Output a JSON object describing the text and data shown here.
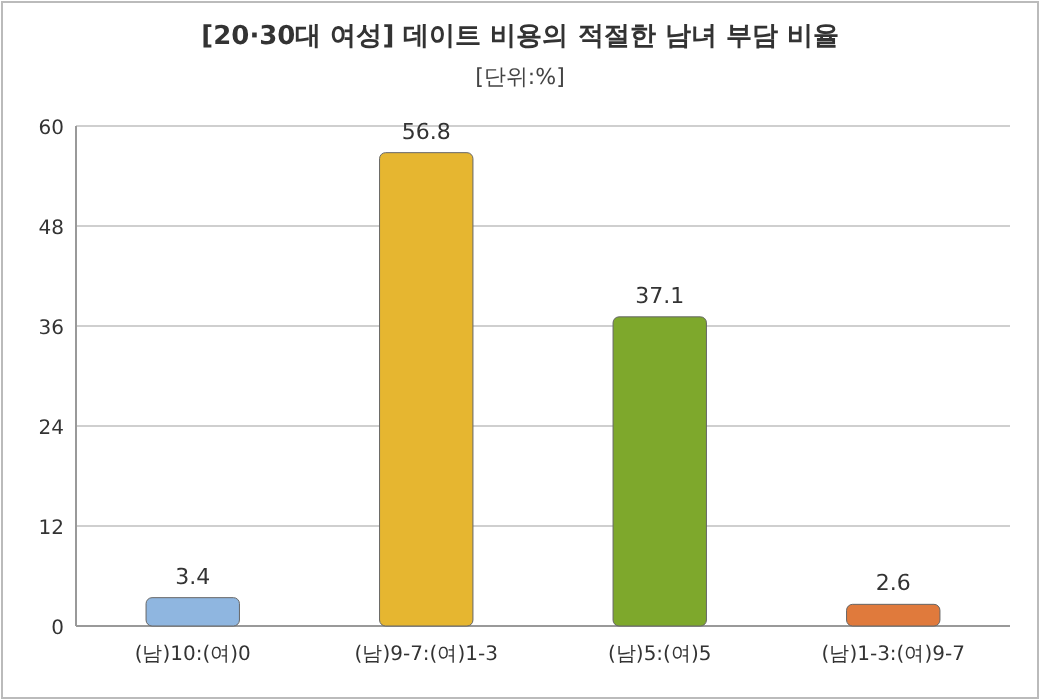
{
  "chart_data": {
    "type": "bar",
    "title": "[20·30대 여성] 데이트 비용의 적절한 남녀 부담 비율",
    "subtitle": "[단위:%]",
    "categories": [
      "(남)10:(여)0",
      "(남)9-7:(여)1-3",
      "(남)5:(여)5",
      "(남)1-3:(여)9-7"
    ],
    "values": [
      3.4,
      56.8,
      37.1,
      2.6
    ],
    "colors": [
      "#8fb6e0",
      "#e6b630",
      "#7ea82c",
      "#e07a3c"
    ],
    "ylim": [
      0,
      60
    ],
    "yticks": [
      0,
      12,
      24,
      36,
      48,
      60
    ],
    "grid": "y",
    "data_labels": true
  }
}
